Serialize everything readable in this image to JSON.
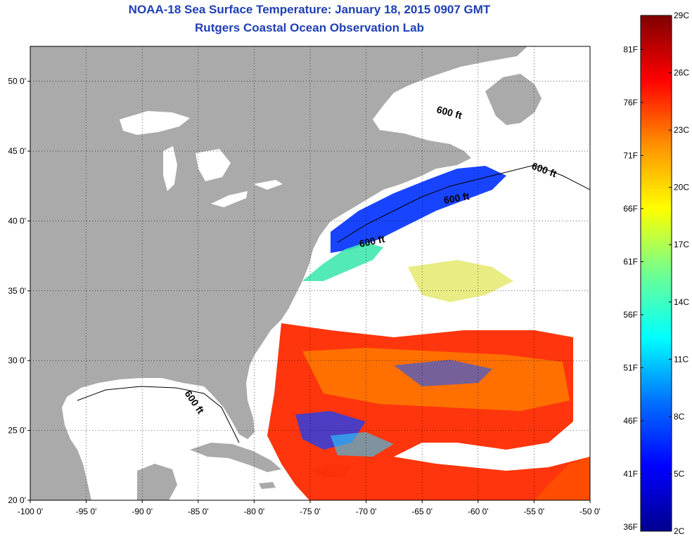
{
  "title": "NOAA-18 Sea Surface Temperature:  January 18, 2015 0907 GMT",
  "subtitle": "Rutgers Coastal Ocean Observation Lab",
  "map": {
    "lon_range": [
      -100,
      -50
    ],
    "lat_range": [
      20,
      52.5
    ],
    "x_ticks": [
      "-100 0'",
      "-95 0'",
      "-90 0'",
      "-85 0'",
      "-80 0'",
      "-75 0'",
      "-70 0'",
      "-65 0'",
      "-60 0'",
      "-55 0'",
      "-50 0'"
    ],
    "y_ticks": [
      "20 0'",
      "25 0'",
      "30 0'",
      "35 0'",
      "40 0'",
      "45 0'",
      "50 0'"
    ],
    "isobath_label": "600 ft",
    "colors": {
      "land": "#aaaaaa",
      "ocean_cloud": "#ffffff"
    }
  },
  "colorbar": {
    "celsius": [
      "2C",
      "5C",
      "8C",
      "11C",
      "14C",
      "17C",
      "20C",
      "23C",
      "26C",
      "29C"
    ],
    "fahrenheit": [
      "36F",
      "41F",
      "46F",
      "51F",
      "56F",
      "61F",
      "66F",
      "71F",
      "76F",
      "81F"
    ],
    "gradient": [
      "#00008f",
      "#0000ff",
      "#0070ff",
      "#00ffff",
      "#70ff90",
      "#ffff00",
      "#ff9000",
      "#ff0000",
      "#800000"
    ]
  }
}
